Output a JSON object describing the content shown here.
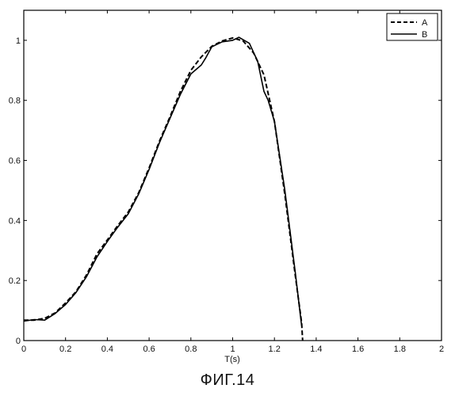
{
  "caption": "ФИГ.14",
  "chart_data": {
    "type": "line",
    "xlabel": "T(s)",
    "ylabel": "",
    "xlim": [
      0,
      2
    ],
    "ylim": [
      0,
      1.1
    ],
    "x_ticks": [
      "0",
      "0.2",
      "0.4",
      "0.6",
      "0.8",
      "1",
      "1.2",
      "1.4",
      "1.6",
      "1.8",
      "2"
    ],
    "y_ticks": [
      "0",
      "0.2",
      "0.4",
      "0.6",
      "0.8",
      "1"
    ],
    "legend_position": "top-right",
    "grid": false,
    "series": [
      {
        "name": "A",
        "style": "dashed",
        "color": "#000000",
        "points": [
          [
            0.0,
            0.068
          ],
          [
            0.05,
            0.068
          ],
          [
            0.1,
            0.074
          ],
          [
            0.15,
            0.092
          ],
          [
            0.2,
            0.125
          ],
          [
            0.25,
            0.163
          ],
          [
            0.3,
            0.218
          ],
          [
            0.35,
            0.288
          ],
          [
            0.4,
            0.335
          ],
          [
            0.45,
            0.383
          ],
          [
            0.5,
            0.428
          ],
          [
            0.55,
            0.492
          ],
          [
            0.6,
            0.575
          ],
          [
            0.65,
            0.665
          ],
          [
            0.7,
            0.745
          ],
          [
            0.75,
            0.83
          ],
          [
            0.8,
            0.9
          ],
          [
            0.85,
            0.945
          ],
          [
            0.9,
            0.98
          ],
          [
            0.95,
            0.998
          ],
          [
            1.0,
            1.008
          ],
          [
            1.05,
            0.998
          ],
          [
            1.1,
            0.958
          ],
          [
            1.15,
            0.885
          ],
          [
            1.2,
            0.73
          ],
          [
            1.25,
            0.485
          ],
          [
            1.3,
            0.215
          ],
          [
            1.33,
            0.06
          ],
          [
            1.335,
            0.0
          ]
        ]
      },
      {
        "name": "B",
        "style": "solid",
        "color": "#000000",
        "points": [
          [
            0.0,
            0.065
          ],
          [
            0.05,
            0.07
          ],
          [
            0.1,
            0.068
          ],
          [
            0.15,
            0.09
          ],
          [
            0.2,
            0.12
          ],
          [
            0.25,
            0.16
          ],
          [
            0.3,
            0.212
          ],
          [
            0.35,
            0.278
          ],
          [
            0.4,
            0.33
          ],
          [
            0.45,
            0.378
          ],
          [
            0.5,
            0.422
          ],
          [
            0.55,
            0.488
          ],
          [
            0.6,
            0.57
          ],
          [
            0.65,
            0.66
          ],
          [
            0.7,
            0.74
          ],
          [
            0.75,
            0.82
          ],
          [
            0.8,
            0.888
          ],
          [
            0.85,
            0.918
          ],
          [
            0.87,
            0.94
          ],
          [
            0.9,
            0.978
          ],
          [
            0.95,
            0.995
          ],
          [
            1.0,
            1.0
          ],
          [
            1.03,
            1.01
          ],
          [
            1.08,
            0.99
          ],
          [
            1.12,
            0.93
          ],
          [
            1.15,
            0.83
          ],
          [
            1.17,
            0.8
          ],
          [
            1.2,
            0.73
          ],
          [
            1.25,
            0.5
          ],
          [
            1.3,
            0.225
          ],
          [
            1.325,
            0.08
          ],
          [
            1.33,
            0.05
          ]
        ]
      }
    ]
  }
}
